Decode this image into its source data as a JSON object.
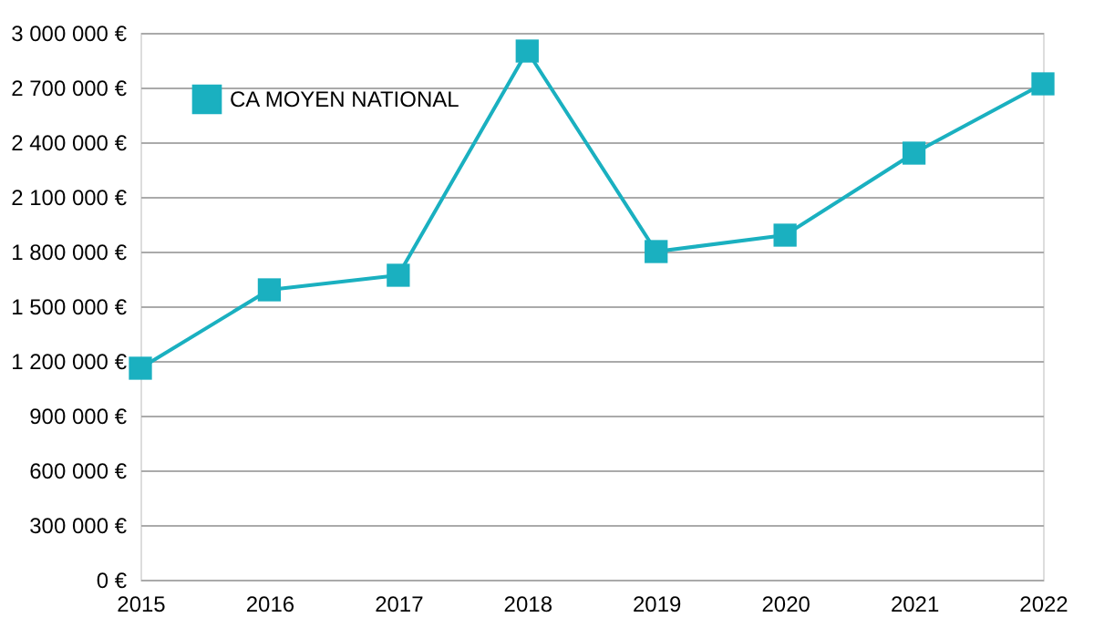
{
  "chart_data": {
    "type": "line",
    "categories": [
      "2015",
      "2016",
      "2017",
      "2018",
      "2019",
      "2020",
      "2021",
      "2022"
    ],
    "series": [
      {
        "name": "CA MOYEN NATIONAL",
        "color": "#1ab0c0",
        "values": [
          1160000,
          1590000,
          1670000,
          2900000,
          1800000,
          1890000,
          2340000,
          2720000
        ]
      }
    ],
    "ylim": [
      0,
      3000000
    ],
    "yticks": [
      {
        "value": 0,
        "label": "0 €"
      },
      {
        "value": 300000,
        "label": "300 000 €"
      },
      {
        "value": 600000,
        "label": "600 000 €"
      },
      {
        "value": 900000,
        "label": "900 000 €"
      },
      {
        "value": 1200000,
        "label": "1 200 000 €"
      },
      {
        "value": 1500000,
        "label": "1 500 000 €"
      },
      {
        "value": 1800000,
        "label": "1 800 000 €"
      },
      {
        "value": 2100000,
        "label": "2 100 000 €"
      },
      {
        "value": 2400000,
        "label": "2 400 000 €"
      },
      {
        "value": 2700000,
        "label": "2 700 000 €"
      },
      {
        "value": 3000000,
        "label": "3 000 000 €"
      }
    ],
    "grid": "y",
    "legend": "top left",
    "marker": "square",
    "line_style": "solid"
  }
}
